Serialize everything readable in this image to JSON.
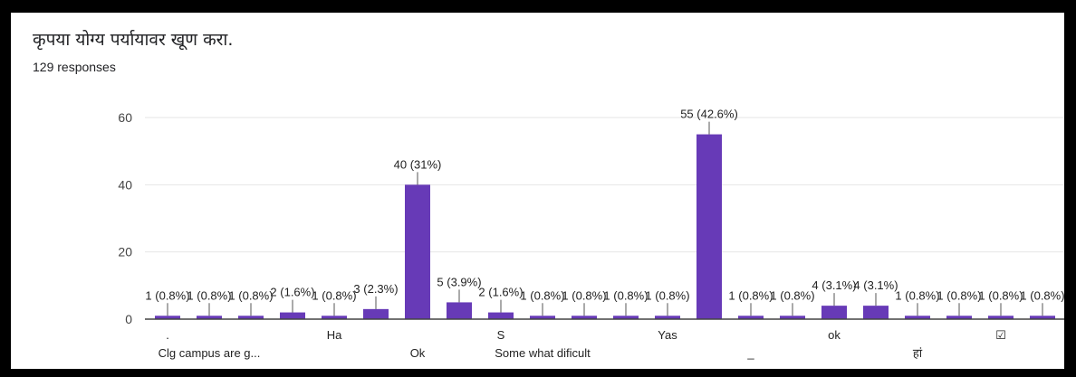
{
  "form": {
    "question": "कृपया योग्य पर्यायावर खूण करा.",
    "responses": "129 responses"
  },
  "colors": {
    "bar": "#673ab7",
    "grid": "#e6e6e6",
    "baseline": "#444444",
    "frame": "#000000"
  },
  "chart_data": {
    "type": "bar",
    "ylim": [
      0,
      60
    ],
    "yticks": [
      0,
      20,
      40,
      60
    ],
    "grid": true,
    "values": [
      1,
      1,
      1,
      2,
      1,
      3,
      40,
      5,
      2,
      1,
      1,
      1,
      1,
      55,
      1,
      1,
      4,
      4,
      1,
      1,
      1,
      1
    ],
    "data_labels": [
      "1 (0.8%)",
      "1 (0.8%)",
      "1 (0.8%)",
      "2 (1.6%)",
      "1 (0.8%)",
      "3 (2.3%)",
      "40 (31%)",
      "5 (3.9%)",
      "2 (1.6%)",
      "1 (0.8%)",
      "1 (0.8%)",
      "1 (0.8%)",
      "1 (0.8%)",
      "55 (42.6%)",
      "1 (0.8%)",
      "1 (0.8%)",
      "4 (3.1%)",
      "4 (3.1%)",
      "1 (0.8%)",
      "1 (0.8%)",
      "1 (0.8%)",
      "1 (0.8%)"
    ],
    "category_labels": [
      {
        "index": 0,
        "row": 1,
        "text": "."
      },
      {
        "index": 1,
        "row": 2,
        "text": "Clg campus are g..."
      },
      {
        "index": 4,
        "row": 1,
        "text": "Ha"
      },
      {
        "index": 6,
        "row": 2,
        "text": "Ok"
      },
      {
        "index": 8,
        "row": 1,
        "text": "S"
      },
      {
        "index": 9,
        "row": 2,
        "text": "Some what dificult"
      },
      {
        "index": 12,
        "row": 1,
        "text": "Yas"
      },
      {
        "index": 14,
        "row": 2,
        "text": "_"
      },
      {
        "index": 16,
        "row": 1,
        "text": "ok"
      },
      {
        "index": 18,
        "row": 2,
        "text": "हां"
      },
      {
        "index": 20,
        "row": 1,
        "text": "☑"
      }
    ]
  }
}
